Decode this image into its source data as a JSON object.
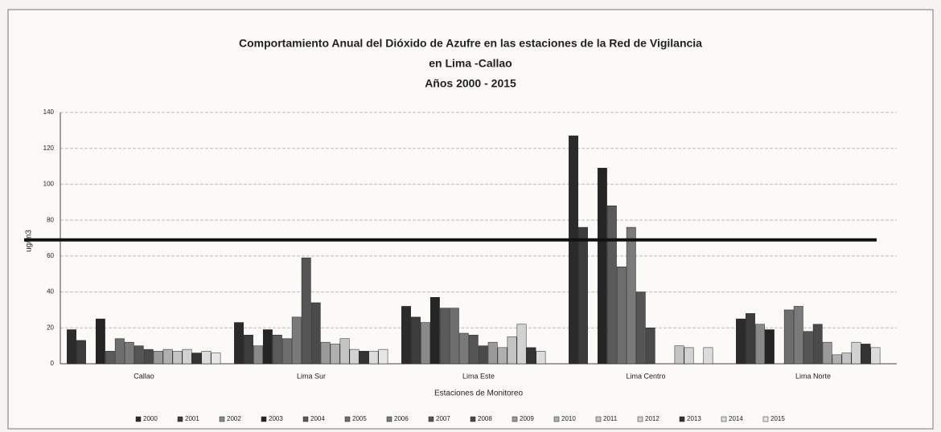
{
  "chart_data": {
    "type": "bar",
    "title": [
      "Comportamiento Anual del Dióxido de Azufre en las estaciones de la Red de Vigilancia",
      "en Lima -Callao",
      "Años 2000 - 2015"
    ],
    "y_label": "ug/m3",
    "x_label": "Estaciones de Monitoreo",
    "categories": [
      "Callao",
      "Lima Sur",
      "Lima Este",
      "Lima Centro",
      "Lima Norte"
    ],
    "series": [
      {
        "name": "2000",
        "color": "#2b2b2b",
        "values": [
          19,
          23,
          32,
          127,
          25
        ]
      },
      {
        "name": "2001",
        "color": "#3c3c3c",
        "values": [
          13,
          16,
          26,
          76,
          28
        ]
      },
      {
        "name": "2002",
        "color": "#8a8a8a",
        "values": [
          null,
          10,
          23,
          null,
          22
        ]
      },
      {
        "name": "2003",
        "color": "#242424",
        "values": [
          25,
          19,
          37,
          109,
          19
        ]
      },
      {
        "name": "2004",
        "color": "#5a5a5a",
        "values": [
          7,
          16,
          31,
          88,
          null
        ]
      },
      {
        "name": "2005",
        "color": "#6e6e6e",
        "values": [
          14,
          14,
          31,
          54,
          30
        ]
      },
      {
        "name": "2006",
        "color": "#7a7a7a",
        "values": [
          12,
          26,
          17,
          76,
          32
        ]
      },
      {
        "name": "2007",
        "color": "#555555",
        "values": [
          10,
          59,
          16,
          40,
          18
        ]
      },
      {
        "name": "2008",
        "color": "#4a4a4a",
        "values": [
          8,
          34,
          10,
          20,
          22
        ]
      },
      {
        "name": "2009",
        "color": "#9a9a9a",
        "values": [
          7,
          12,
          12,
          null,
          12
        ]
      },
      {
        "name": "2010",
        "color": "#b0b0b0",
        "values": [
          8,
          11,
          9,
          null,
          5
        ]
      },
      {
        "name": "2011",
        "color": "#c4c4c4",
        "values": [
          7,
          14,
          15,
          10,
          6
        ]
      },
      {
        "name": "2012",
        "color": "#d2d2d2",
        "values": [
          8,
          8,
          22,
          9,
          12
        ]
      },
      {
        "name": "2013",
        "color": "#333333",
        "values": [
          6,
          7,
          9,
          null,
          11
        ]
      },
      {
        "name": "2014",
        "color": "#dcdcdc",
        "values": [
          7,
          7,
          7,
          9,
          9
        ]
      },
      {
        "name": "2015",
        "color": "#e6e6e6",
        "values": [
          6,
          8,
          null,
          null,
          null
        ]
      }
    ],
    "threshold": 69,
    "ylim": [
      0,
      140
    ],
    "yticks": [
      0,
      20,
      40,
      60,
      80,
      100,
      120,
      140
    ],
    "grid": true,
    "legend": "bottom"
  }
}
